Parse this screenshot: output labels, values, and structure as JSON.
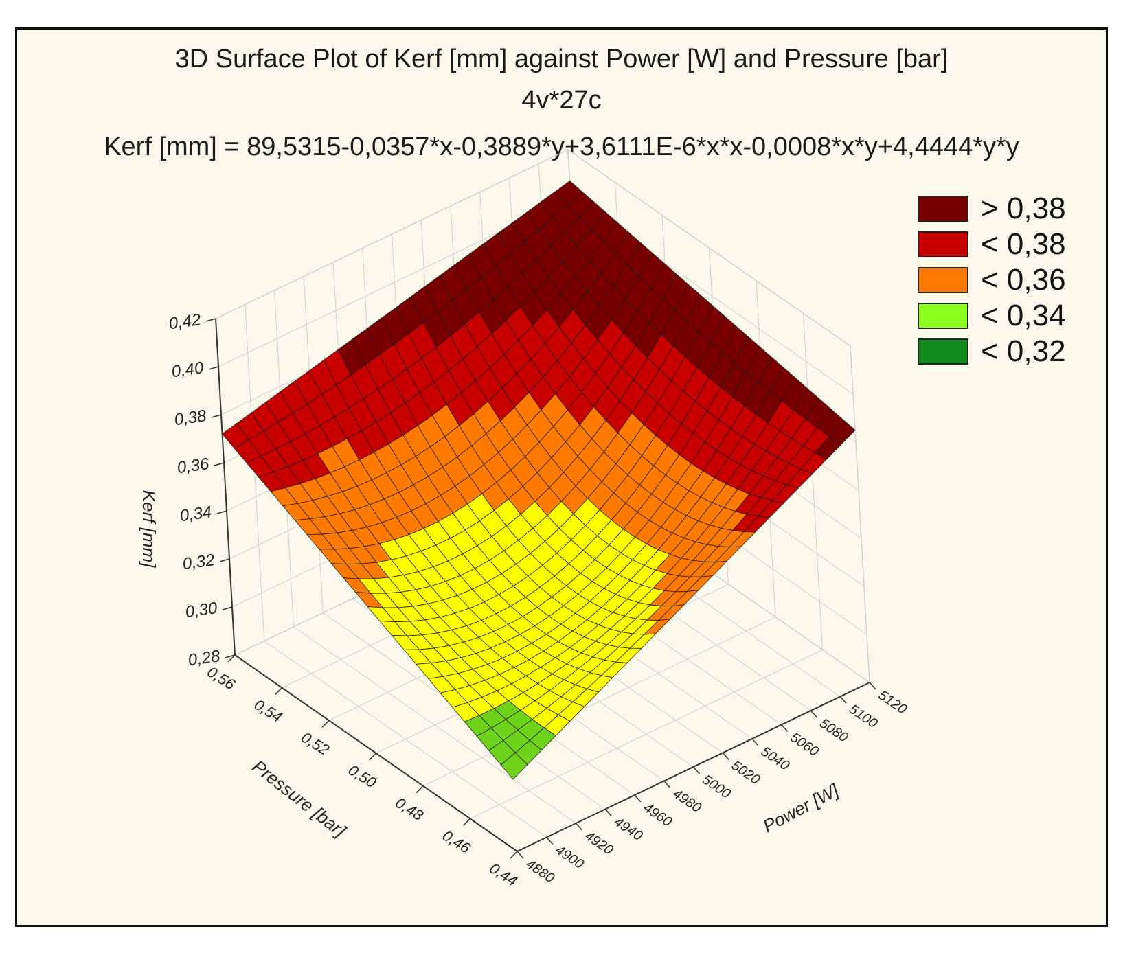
{
  "chart_data": {
    "type": "surface3d",
    "title": "3D Surface Plot of Kerf [mm] against Power [W] and Pressure [bar]",
    "subtitle": "4v*27c",
    "equation": "Kerf [mm] = 89,5315-0,0357*x-0,3889*y+3,6111E-6*x*x-0,0008*x*y+4,4444*y*y",
    "xlabel": "Power [W]",
    "ylabel": "Pressure [bar]",
    "zlabel": "Kerf [mm]",
    "xlim": [
      4880,
      5120
    ],
    "ylim": [
      0.44,
      0.56
    ],
    "zlim": [
      0.28,
      0.42
    ],
    "x_ticks": [
      "4880",
      "4900",
      "4920",
      "4940",
      "4960",
      "4980",
      "5000",
      "5020",
      "5040",
      "5060",
      "5080",
      "5100",
      "5120"
    ],
    "y_ticks": [
      "0,44",
      "0,46",
      "0,48",
      "0,50",
      "0,52",
      "0,54",
      "0,56"
    ],
    "z_ticks": [
      "0,28",
      "0,30",
      "0,32",
      "0,34",
      "0,36",
      "0,38",
      "0,40",
      "0,42"
    ],
    "coefficients": {
      "c0": 89.5315,
      "cx": -0.0357,
      "cy": -0.3889,
      "cxx": 3.6111e-06,
      "cxy": -0.0008,
      "cyy": 4.4444
    },
    "surface_anchor_values": {
      "power_4880_pressure_0.56": 0.372,
      "power_5120_pressure_0.56": 0.407,
      "power_5120_pressure_0.44": 0.385,
      "power_4880_pressure_0.44": 0.31,
      "minimum_kerf": 0.305
    },
    "legend": [
      {
        "label": "> 0,38",
        "color": "#7a0000"
      },
      {
        "label": "< 0,38",
        "color": "#c80000"
      },
      {
        "label": "< 0,36",
        "color": "#ff7a00"
      },
      {
        "label": "< 0,34",
        "color": "#8aff1e"
      },
      {
        "label": "< 0,32",
        "color": "#0f8a1e"
      }
    ]
  }
}
